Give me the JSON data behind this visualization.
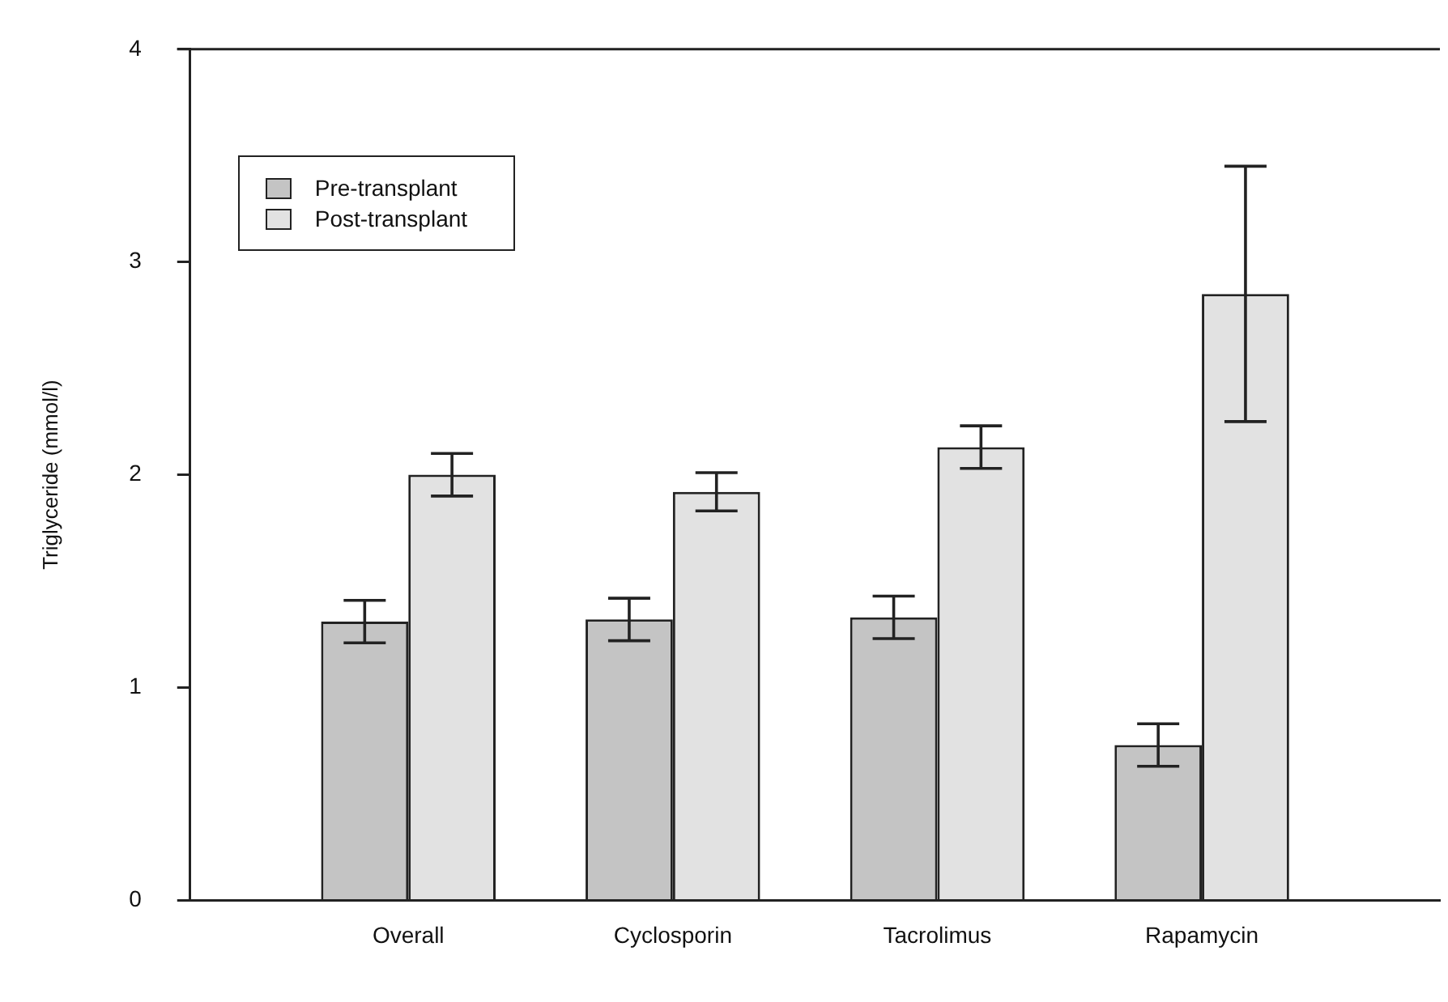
{
  "chart_data": {
    "type": "bar",
    "ylabel": "Triglyceride (mmol/l)",
    "categories": [
      "Overall",
      "Cyclosporin",
      "Tacrolimus",
      "Rapamycin"
    ],
    "series": [
      {
        "name": "Pre-transplant",
        "color": "#c4c4c4",
        "values": [
          1.31,
          1.32,
          1.33,
          0.73
        ],
        "errors": [
          0.1,
          0.1,
          0.1,
          0.1
        ]
      },
      {
        "name": "Post-transplant",
        "color": "#e2e2e2",
        "values": [
          2.0,
          1.92,
          2.13,
          2.85
        ],
        "errors": [
          0.1,
          0.09,
          0.1,
          0.6
        ]
      }
    ],
    "ylim": [
      0,
      4
    ],
    "yticks": [
      0,
      1,
      2,
      3,
      4
    ],
    "grid": false,
    "legend": "top left"
  }
}
